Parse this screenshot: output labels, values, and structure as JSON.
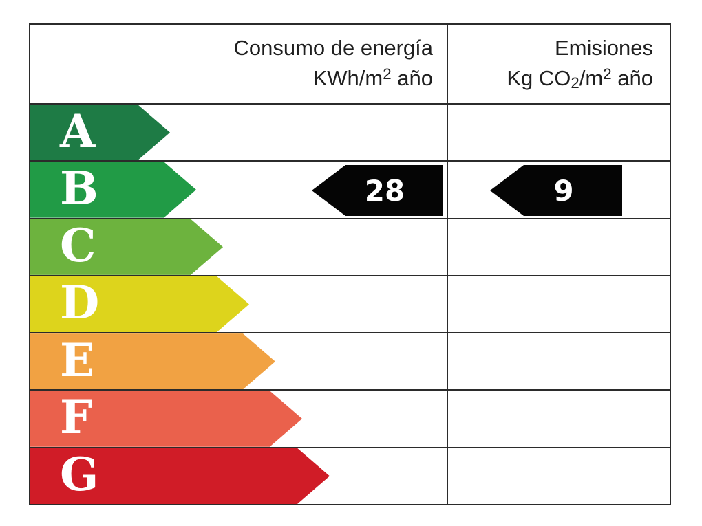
{
  "colors": {
    "border": "#2b2b2b",
    "header_text": "#1f1f1f",
    "letter_text": "#ffffff",
    "indicator_bg": "#050505",
    "indicator_text": "#ffffff"
  },
  "header": {
    "consumption_title": "Consumo de energía",
    "consumption_unit_pre": "KWh/m",
    "consumption_unit_sup": "2",
    "consumption_unit_post": " año",
    "emissions_title": "Emisiones",
    "emissions_unit_a": "Kg CO",
    "emissions_unit_sub": "2",
    "emissions_unit_b": "/m",
    "emissions_unit_sup": "2",
    "emissions_unit_c": " año"
  },
  "ratings": [
    {
      "letter": "A",
      "color": "#1e7b45",
      "arrow_width": 203
    },
    {
      "letter": "B",
      "color": "#219b46",
      "arrow_width": 241
    },
    {
      "letter": "C",
      "color": "#6db33e",
      "arrow_width": 280
    },
    {
      "letter": "D",
      "color": "#ddd41c",
      "arrow_width": 318
    },
    {
      "letter": "E",
      "color": "#f1a243",
      "arrow_width": 356
    },
    {
      "letter": "F",
      "color": "#ea614c",
      "arrow_width": 395
    },
    {
      "letter": "G",
      "color": "#d01c27",
      "arrow_width": 435
    }
  ],
  "indicators": {
    "consumption_value": "28",
    "emissions_value": "9"
  },
  "chart_data": {
    "type": "table",
    "columns": [
      "Consumo de energía KWh/m2 año",
      "Emisiones Kg CO2/m2 año"
    ],
    "rating_scale": [
      "A",
      "B",
      "C",
      "D",
      "E",
      "F",
      "G"
    ],
    "rating_colors": [
      "#1e7b45",
      "#219b46",
      "#6db33e",
      "#ddd41c",
      "#f1a243",
      "#ea614c",
      "#d01c27"
    ],
    "rated_class": "B",
    "values": {
      "consumo_energia_kwh_m2_ano": 28,
      "emisiones_kg_co2_m2_ano": 9
    }
  }
}
